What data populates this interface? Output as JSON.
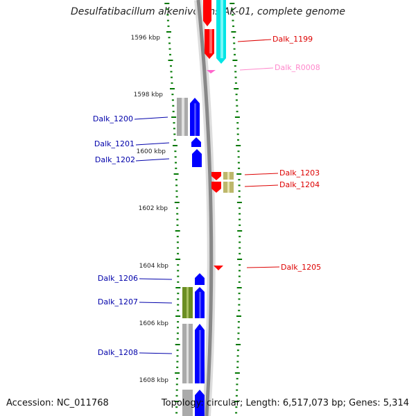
{
  "title": "Desulfatibacillum alkenivorans AK-01, complete genome",
  "footer": {
    "accession": "Accession: NC_011768",
    "summary": "Topology: circular; Length: 6,517,073 bp; Genes: 5,314"
  },
  "colors": {
    "forward_cds": "#0000ff",
    "reverse_cds": "#ff0000",
    "rna": "#ff66cc",
    "tick": "#007700",
    "backbone": "#888888",
    "cyan_feature": "#00e5e5",
    "olive_feature": "#6b8e23",
    "khaki_feature": "#bdb76b",
    "gray_feature": "#aaaaaa"
  },
  "ruler": {
    "unit": "kbp",
    "labels": [
      "1596 kbp",
      "1598 kbp",
      "1600 kbp",
      "1602 kbp",
      "1604 kbp",
      "1606 kbp",
      "1608 kbp"
    ]
  },
  "genes": [
    {
      "name": "Dalk_1199",
      "color": "#dd0000"
    },
    {
      "name": "Dalk_R0008",
      "color": "#ff88cc"
    },
    {
      "name": "Dalk_1200",
      "color": "#0000aa"
    },
    {
      "name": "Dalk_1201",
      "color": "#0000aa"
    },
    {
      "name": "Dalk_1202",
      "color": "#0000aa"
    },
    {
      "name": "Dalk_1203",
      "color": "#dd0000"
    },
    {
      "name": "Dalk_1204",
      "color": "#dd0000"
    },
    {
      "name": "Dalk_1205",
      "color": "#dd0000"
    },
    {
      "name": "Dalk_1206",
      "color": "#0000aa"
    },
    {
      "name": "Dalk_1207",
      "color": "#0000aa"
    },
    {
      "name": "Dalk_1208",
      "color": "#0000aa"
    }
  ]
}
